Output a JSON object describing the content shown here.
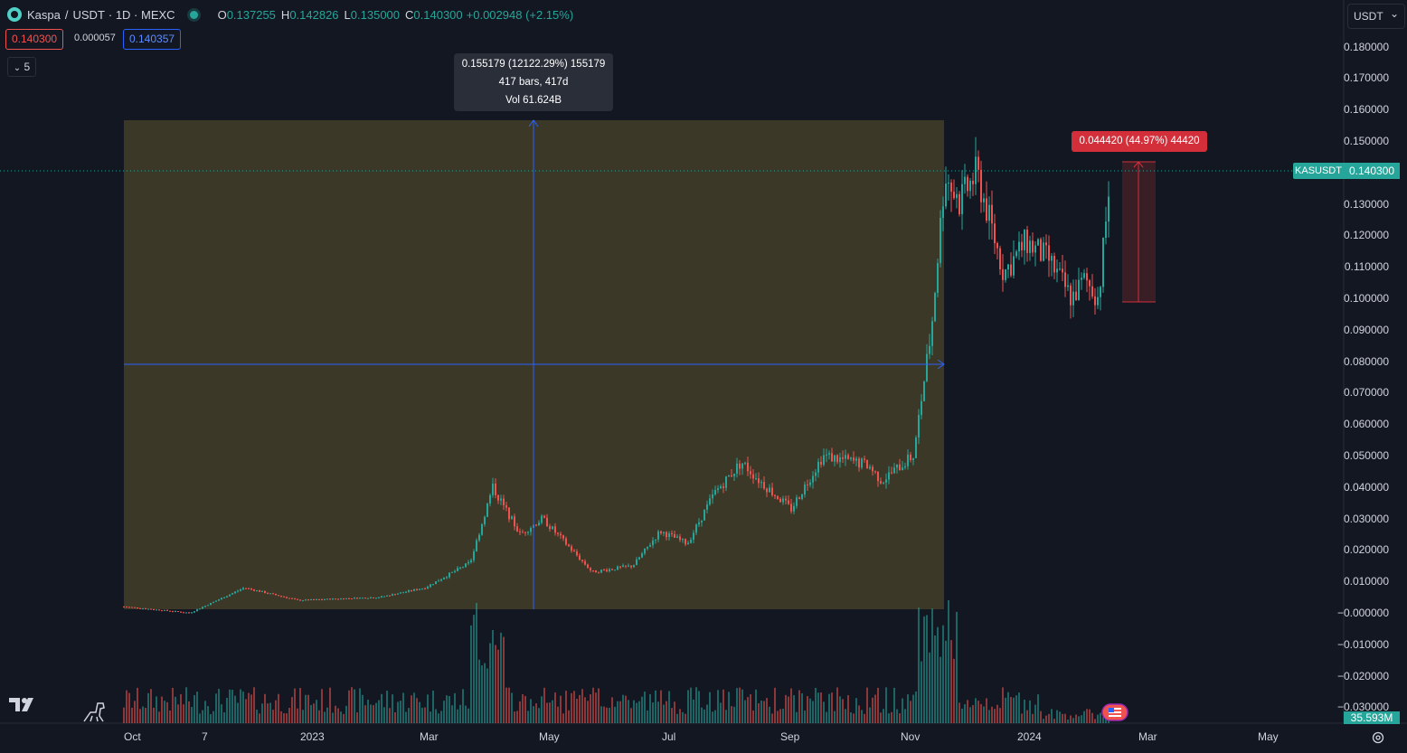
{
  "header": {
    "symbol_name": "Kaspa",
    "pair_separator": "/",
    "quote": "USDT",
    "interval_exchange": "· 1D · MEXC",
    "ohlc": {
      "o_label": "O",
      "o_value": "0.137255",
      "h_label": "H",
      "h_value": "0.142826",
      "l_label": "L",
      "l_value": "0.135000",
      "c_label": "C",
      "c_value": "0.140300",
      "change": "+0.002948 (+2.15%)"
    },
    "sell_price": "0.140300",
    "spread": "0.000057",
    "buy_price": "0.140357",
    "indicators_toggle": "5"
  },
  "currency_selector": {
    "value": "USDT",
    "caret": "⌄"
  },
  "price_axis": {
    "labels": [
      "0.180000",
      "0.170000",
      "0.160000",
      "0.150000",
      "0.130000",
      "0.120000",
      "0.110000",
      "0.100000",
      "0.090000",
      "0.080000",
      "0.070000",
      "0.060000",
      "0.050000",
      "0.040000",
      "0.030000",
      "0.020000",
      "0.010000",
      "−0.000000",
      "−0.010000",
      "−0.020000",
      "−0.030000"
    ],
    "values": [
      0.18,
      0.17,
      0.16,
      0.15,
      0.13,
      0.12,
      0.11,
      0.1,
      0.09,
      0.08,
      0.07,
      0.06,
      0.05,
      0.04,
      0.03,
      0.02,
      0.01,
      0.0,
      -0.01,
      -0.02,
      -0.03
    ]
  },
  "time_axis": {
    "labels": [
      "Oct",
      "7",
      "2023",
      "Mar",
      "May",
      "Jul",
      "Sep",
      "Nov",
      "2024",
      "Mar",
      "May"
    ]
  },
  "ticker_tag": "KASUSDT",
  "last_price_tag": "0.140300",
  "volume_tag": "35.593M",
  "tooltip": {
    "line1": "0.155179 (12122.29%) 155179",
    "line2": "417 bars, 417d",
    "line3": "Vol 61.624B"
  },
  "measure_label": "0.044420 (44.97%) 44420",
  "colors": {
    "background": "#131722",
    "up": "#26a69a",
    "down": "#ef5350",
    "measure_fill": "#3d3a28",
    "measure_line": "#2962ff",
    "range_red": "#d32f3a"
  },
  "icons": {
    "logo": "tradingview-logo-icon",
    "dino": "dino-icon",
    "settings": "gear-icon",
    "flag": "us-flag-icon"
  }
}
